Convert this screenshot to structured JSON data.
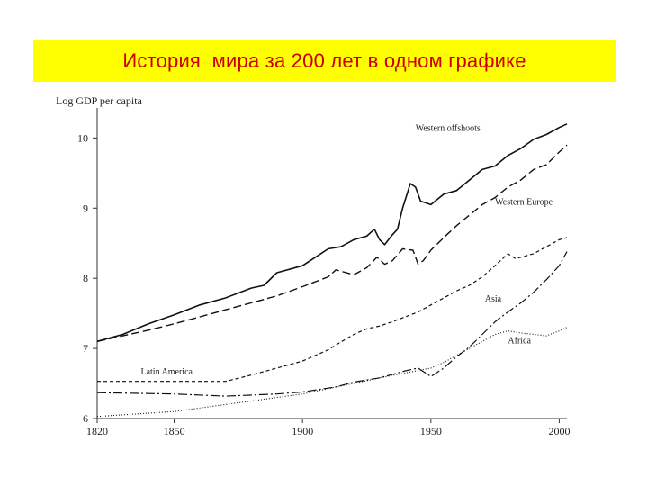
{
  "header": {
    "title": "История  мира за 200 лет в одном графике",
    "background_color": "#ffff00",
    "title_color": "#cc0000"
  },
  "chart_data": {
    "type": "line",
    "title": "",
    "ylabel": "Log GDP per capita",
    "xlabel": "",
    "xlim": [
      1820,
      2003
    ],
    "ylim": [
      6,
      10.3
    ],
    "x_ticks": [
      1820,
      1850,
      1900,
      1950,
      2000
    ],
    "y_ticks": [
      6,
      7,
      8,
      9,
      10
    ],
    "grid": false,
    "legend": "inline-labels",
    "series": [
      {
        "name": "Western offshoots",
        "dash": "solid",
        "points": [
          [
            1820,
            7.1
          ],
          [
            1830,
            7.2
          ],
          [
            1840,
            7.35
          ],
          [
            1850,
            7.48
          ],
          [
            1860,
            7.62
          ],
          [
            1870,
            7.72
          ],
          [
            1880,
            7.86
          ],
          [
            1885,
            7.9
          ],
          [
            1890,
            8.08
          ],
          [
            1900,
            8.18
          ],
          [
            1905,
            8.3
          ],
          [
            1910,
            8.42
          ],
          [
            1915,
            8.45
          ],
          [
            1920,
            8.55
          ],
          [
            1925,
            8.6
          ],
          [
            1928,
            8.7
          ],
          [
            1930,
            8.55
          ],
          [
            1932,
            8.48
          ],
          [
            1935,
            8.62
          ],
          [
            1937,
            8.7
          ],
          [
            1939,
            9.0
          ],
          [
            1942,
            9.35
          ],
          [
            1944,
            9.3
          ],
          [
            1946,
            9.1
          ],
          [
            1950,
            9.05
          ],
          [
            1955,
            9.2
          ],
          [
            1960,
            9.25
          ],
          [
            1965,
            9.4
          ],
          [
            1970,
            9.55
          ],
          [
            1975,
            9.6
          ],
          [
            1980,
            9.75
          ],
          [
            1985,
            9.85
          ],
          [
            1990,
            9.98
          ],
          [
            1995,
            10.05
          ],
          [
            2000,
            10.15
          ],
          [
            2003,
            10.2
          ]
        ]
      },
      {
        "name": "Western Europe",
        "dash": "long-dash",
        "points": [
          [
            1820,
            7.1
          ],
          [
            1830,
            7.18
          ],
          [
            1840,
            7.26
          ],
          [
            1850,
            7.35
          ],
          [
            1860,
            7.45
          ],
          [
            1870,
            7.55
          ],
          [
            1880,
            7.65
          ],
          [
            1890,
            7.75
          ],
          [
            1900,
            7.88
          ],
          [
            1910,
            8.02
          ],
          [
            1913,
            8.12
          ],
          [
            1920,
            8.05
          ],
          [
            1925,
            8.15
          ],
          [
            1929,
            8.3
          ],
          [
            1932,
            8.2
          ],
          [
            1935,
            8.25
          ],
          [
            1939,
            8.42
          ],
          [
            1943,
            8.4
          ],
          [
            1945,
            8.2
          ],
          [
            1947,
            8.25
          ],
          [
            1950,
            8.4
          ],
          [
            1955,
            8.58
          ],
          [
            1960,
            8.75
          ],
          [
            1965,
            8.9
          ],
          [
            1970,
            9.05
          ],
          [
            1975,
            9.15
          ],
          [
            1980,
            9.3
          ],
          [
            1985,
            9.4
          ],
          [
            1990,
            9.55
          ],
          [
            1995,
            9.62
          ],
          [
            2000,
            9.8
          ],
          [
            2003,
            9.9
          ]
        ]
      },
      {
        "name": "Latin America",
        "dash": "short-dash",
        "points": [
          [
            1820,
            6.53
          ],
          [
            1850,
            6.53
          ],
          [
            1870,
            6.53
          ],
          [
            1880,
            6.62
          ],
          [
            1890,
            6.72
          ],
          [
            1900,
            6.82
          ],
          [
            1910,
            6.98
          ],
          [
            1913,
            7.05
          ],
          [
            1920,
            7.2
          ],
          [
            1925,
            7.28
          ],
          [
            1930,
            7.32
          ],
          [
            1935,
            7.38
          ],
          [
            1940,
            7.45
          ],
          [
            1945,
            7.52
          ],
          [
            1950,
            7.62
          ],
          [
            1955,
            7.72
          ],
          [
            1960,
            7.82
          ],
          [
            1965,
            7.9
          ],
          [
            1970,
            8.02
          ],
          [
            1975,
            8.18
          ],
          [
            1980,
            8.35
          ],
          [
            1983,
            8.28
          ],
          [
            1985,
            8.3
          ],
          [
            1990,
            8.35
          ],
          [
            1995,
            8.45
          ],
          [
            2000,
            8.55
          ],
          [
            2003,
            8.58
          ]
        ]
      },
      {
        "name": "Asia",
        "dash": "dash-dot",
        "points": [
          [
            1820,
            6.37
          ],
          [
            1850,
            6.35
          ],
          [
            1870,
            6.32
          ],
          [
            1890,
            6.35
          ],
          [
            1900,
            6.38
          ],
          [
            1913,
            6.45
          ],
          [
            1920,
            6.52
          ],
          [
            1930,
            6.58
          ],
          [
            1940,
            6.68
          ],
          [
            1945,
            6.72
          ],
          [
            1950,
            6.6
          ],
          [
            1955,
            6.72
          ],
          [
            1960,
            6.88
          ],
          [
            1965,
            7.02
          ],
          [
            1970,
            7.2
          ],
          [
            1975,
            7.38
          ],
          [
            1980,
            7.52
          ],
          [
            1985,
            7.65
          ],
          [
            1990,
            7.8
          ],
          [
            1995,
            7.98
          ],
          [
            2000,
            8.18
          ],
          [
            2003,
            8.38
          ]
        ]
      },
      {
        "name": "Africa",
        "dash": "dotted",
        "points": [
          [
            1820,
            6.03
          ],
          [
            1850,
            6.1
          ],
          [
            1870,
            6.2
          ],
          [
            1890,
            6.3
          ],
          [
            1900,
            6.35
          ],
          [
            1913,
            6.45
          ],
          [
            1920,
            6.5
          ],
          [
            1930,
            6.58
          ],
          [
            1940,
            6.65
          ],
          [
            1950,
            6.72
          ],
          [
            1955,
            6.8
          ],
          [
            1960,
            6.9
          ],
          [
            1965,
            7.0
          ],
          [
            1970,
            7.1
          ],
          [
            1975,
            7.2
          ],
          [
            1980,
            7.25
          ],
          [
            1985,
            7.22
          ],
          [
            1990,
            7.2
          ],
          [
            1995,
            7.18
          ],
          [
            2000,
            7.25
          ],
          [
            2003,
            7.3
          ]
        ]
      }
    ]
  }
}
